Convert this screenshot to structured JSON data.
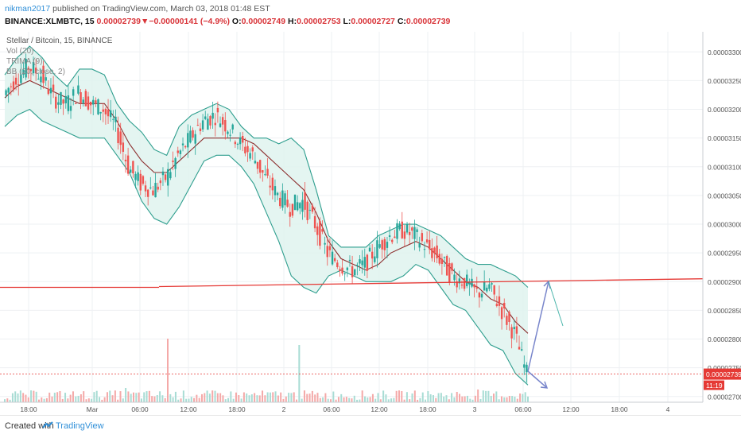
{
  "header": {
    "user": "nikman2017",
    "published": "published on TradingView.com, March 03, 2018 01:48 EST",
    "symbol": "BINANCE:XLMBTC, 15",
    "last": "0.00002739",
    "change_arrow": "▼",
    "change": "−0.00000141 (−4.9%)",
    "o_label": "O:",
    "o": "0.00002749",
    "h_label": "H:",
    "h": "0.00002753",
    "l_label": "L:",
    "l": "0.00002727",
    "c_label": "C:",
    "c": "0.00002739"
  },
  "legend": {
    "title": "Stellar / Bitcoin, 15, BINANCE",
    "vol": "Vol (20)",
    "trima": "TRIMA (9)",
    "bb": "BB (20, close, 2)"
  },
  "price_badge": "0.00002739",
  "time_badge": "11:19",
  "footer": {
    "created": "Created with",
    "brand": "TradingView"
  },
  "colors": {
    "up": "#26a69a",
    "down": "#ef5350",
    "band": "#2e9e8e",
    "band_fill": "#dff3ef",
    "basis": "#8b2d2d",
    "support": "#e53935",
    "arrow": "#7986cb",
    "badge": "#e53935"
  },
  "chart_data": {
    "type": "line",
    "title": "Stellar / Bitcoin, 15, BINANCE",
    "x_ticks": [
      "18:00",
      "Mar",
      "06:00",
      "12:00",
      "18:00",
      "2",
      "06:00",
      "12:00",
      "18:00",
      "3",
      "06:00",
      "12:00",
      "18:00",
      "4"
    ],
    "y_ticks": [
      2.7e-05,
      2.75e-05,
      2.8e-05,
      2.85e-05,
      2.9e-05,
      2.95e-05,
      3e-05,
      3.05e-05,
      3.1e-05,
      3.15e-05,
      3.2e-05,
      3.25e-05,
      3.3e-05
    ],
    "ylim": [
      2.69e-05,
      3.335e-05
    ],
    "grid": true,
    "series": [
      {
        "name": "Price",
        "values": [
          3.225e-05,
          3.255e-05,
          3.275e-05,
          3.26e-05,
          3.22e-05,
          3.21e-05,
          3.23e-05,
          3.21e-05,
          3.2e-05,
          3.17e-05,
          3.1e-05,
          3.07e-05,
          3.06e-05,
          3.08e-05,
          3.12e-05,
          3.15e-05,
          3.18e-05,
          3.19e-05,
          3.17e-05,
          3.14e-05,
          3.12e-05,
          3.08e-05,
          3.05e-05,
          3.03e-05,
          3.04e-05,
          3e-05,
          2.95e-05,
          2.93e-05,
          2.92e-05,
          2.93e-05,
          2.96e-05,
          2.98e-05,
          2.99e-05,
          2.98e-05,
          2.96e-05,
          2.94e-05,
          2.91e-05,
          2.9e-05,
          2.88e-05,
          2.89e-05,
          2.85e-05,
          2.81e-05,
          2.739e-05
        ]
      },
      {
        "name": "Bollinger upper",
        "values": [
          3.26e-05,
          3.29e-05,
          3.31e-05,
          3.29e-05,
          3.26e-05,
          3.24e-05,
          3.27e-05,
          3.27e-05,
          3.26e-05,
          3.21e-05,
          3.18e-05,
          3.16e-05,
          3.13e-05,
          3.12e-05,
          3.17e-05,
          3.19e-05,
          3.2e-05,
          3.21e-05,
          3.2e-05,
          3.17e-05,
          3.15e-05,
          3.15e-05,
          3.14e-05,
          3.15e-05,
          3.13e-05,
          3.06e-05,
          2.98e-05,
          2.96e-05,
          2.96e-05,
          2.96e-05,
          2.98e-05,
          2.99e-05,
          3e-05,
          3e-05,
          2.99e-05,
          2.98e-05,
          2.96e-05,
          2.94e-05,
          2.93e-05,
          2.93e-05,
          2.92e-05,
          2.91e-05,
          2.89e-05
        ]
      },
      {
        "name": "Bollinger basis",
        "values": [
          3.22e-05,
          3.24e-05,
          3.25e-05,
          3.24e-05,
          3.23e-05,
          3.22e-05,
          3.21e-05,
          3.21e-05,
          3.21e-05,
          3.18e-05,
          3.14e-05,
          3.11e-05,
          3.09e-05,
          3.09e-05,
          3.11e-05,
          3.13e-05,
          3.15e-05,
          3.15e-05,
          3.15e-05,
          3.15e-05,
          3.14e-05,
          3.12e-05,
          3.1e-05,
          3.08e-05,
          3.06e-05,
          3.02e-05,
          2.97e-05,
          2.94e-05,
          2.93e-05,
          2.92e-05,
          2.93e-05,
          2.95e-05,
          2.96e-05,
          2.97e-05,
          2.96e-05,
          2.94e-05,
          2.92e-05,
          2.9e-05,
          2.89e-05,
          2.87e-05,
          2.86e-05,
          2.83e-05,
          2.81e-05
        ]
      },
      {
        "name": "Bollinger lower",
        "values": [
          3.17e-05,
          3.19e-05,
          3.2e-05,
          3.18e-05,
          3.17e-05,
          3.16e-05,
          3.15e-05,
          3.15e-05,
          3.15e-05,
          3.12e-05,
          3.09e-05,
          3.04e-05,
          3.01e-05,
          3e-05,
          3.03e-05,
          3.07e-05,
          3.11e-05,
          3.12e-05,
          3.12e-05,
          3.1e-05,
          3.07e-05,
          3.02e-05,
          2.97e-05,
          2.91e-05,
          2.89e-05,
          2.88e-05,
          2.91e-05,
          2.92e-05,
          2.91e-05,
          2.9e-05,
          2.9e-05,
          2.9e-05,
          2.91e-05,
          2.93e-05,
          2.92e-05,
          2.89e-05,
          2.86e-05,
          2.85e-05,
          2.82e-05,
          2.79e-05,
          2.78e-05,
          2.74e-05,
          2.72e-05
        ]
      }
    ],
    "support_line": [
      2.89e-05,
      2.905e-05
    ],
    "last_price": 2.739e-05
  }
}
